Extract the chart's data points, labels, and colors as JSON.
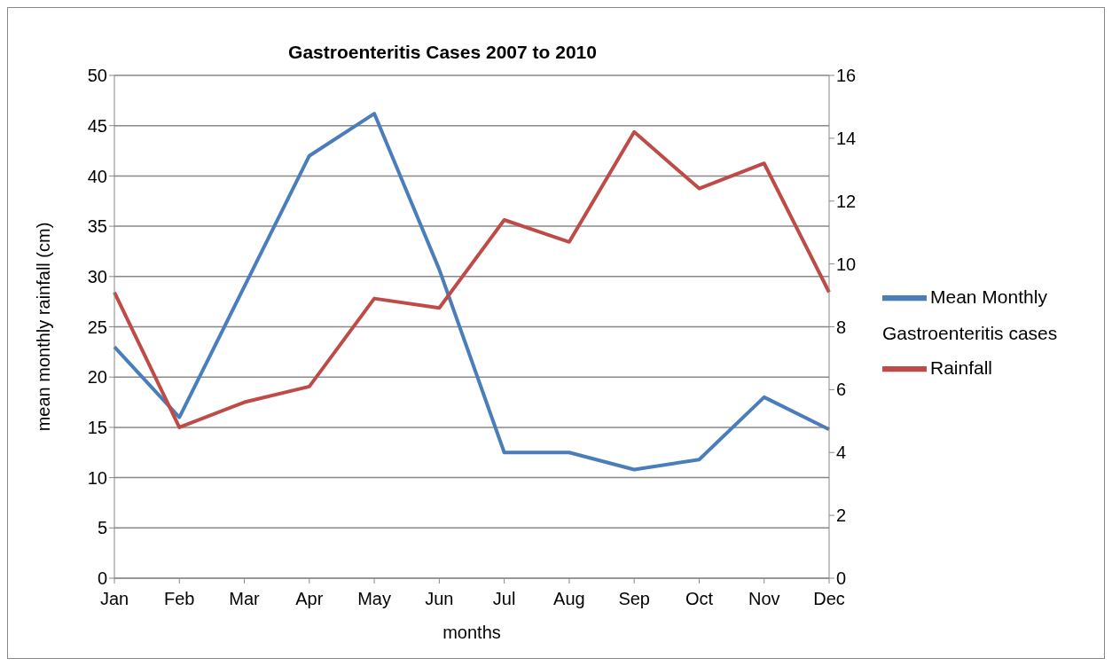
{
  "chart_data": {
    "type": "line",
    "title": "Gastroenteritis  Cases 2007 to 2010",
    "xlabel": "months",
    "ylabel": "mean monthly rainfall (cm)",
    "categories": [
      "Jan",
      "Feb",
      "Mar",
      "Apr",
      "May",
      "Jun",
      "Jul",
      "Aug",
      "Sep",
      "Oct",
      "Nov",
      "Dec"
    ],
    "series": [
      {
        "name": "Mean Monthly Gastroenteritis cases",
        "color": "#4a7ebb",
        "values": [
          23,
          16,
          29,
          42,
          46.2,
          30.7,
          12.5,
          12.5,
          10.8,
          11.8,
          18,
          14.8
        ]
      },
      {
        "name": "Rainfall",
        "color": "#be4b48",
        "axis": "y2",
        "values": [
          9.1,
          4.8,
          5.6,
          6.1,
          8.9,
          8.6,
          11.4,
          10.7,
          14.2,
          12.4,
          13.2,
          9.1
        ]
      }
    ],
    "ylim": [
      0,
      50
    ],
    "yticks": [
      0,
      5,
      10,
      15,
      20,
      25,
      30,
      35,
      40,
      45,
      50
    ],
    "y2lim": [
      0,
      16
    ],
    "y2ticks": [
      0,
      2,
      4,
      6,
      8,
      10,
      12,
      14,
      16
    ],
    "grid": "y",
    "legend": "right",
    "marker": "none",
    "line_style": "solid"
  }
}
